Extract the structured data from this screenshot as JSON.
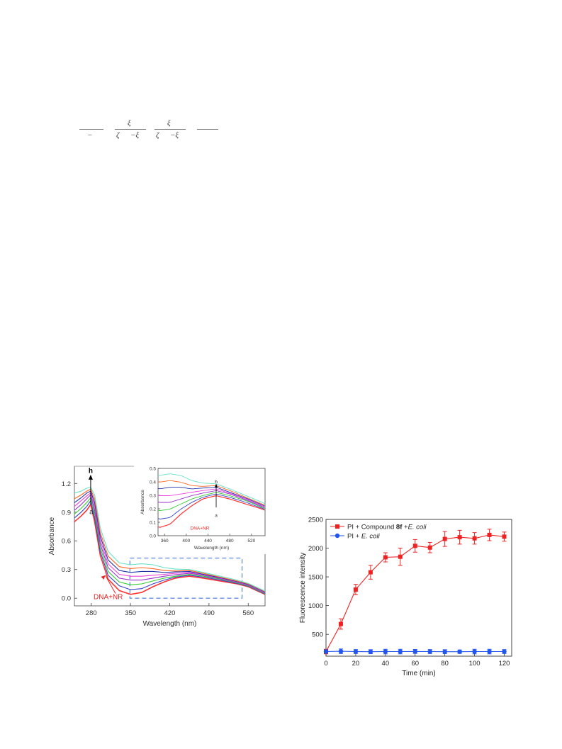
{
  "equation": {
    "parts": [
      "ξ",
      "ξ",
      "ζ",
      "−ξ",
      "ζ",
      "−ξ",
      "−"
    ]
  },
  "chart_data": [
    {
      "type": "line",
      "title": "",
      "xlabel": "Wavelength (nm)",
      "ylabel": "Absorbance",
      "xlim": [
        250,
        590
      ],
      "ylim": [
        -0.08,
        1.38
      ],
      "x_ticks": [
        280,
        350,
        420,
        490,
        560
      ],
      "y_ticks": [
        0.0,
        0.3,
        0.6,
        0.9,
        1.2
      ],
      "x": [
        250,
        262,
        272,
        279,
        286,
        296,
        310,
        330,
        350,
        370,
        390,
        410,
        430,
        455,
        480,
        510,
        540,
        560,
        575,
        590
      ],
      "series": [
        {
          "color": "#ff3333",
          "values": [
            0.8,
            0.86,
            0.92,
            0.98,
            0.8,
            0.45,
            0.2,
            0.08,
            0.04,
            0.06,
            0.12,
            0.17,
            0.21,
            0.23,
            0.21,
            0.18,
            0.15,
            0.12,
            0.08,
            0.04
          ]
        },
        {
          "color": "#3344cc",
          "values": [
            0.84,
            0.9,
            0.96,
            1.02,
            0.84,
            0.49,
            0.24,
            0.13,
            0.09,
            0.1,
            0.15,
            0.19,
            0.22,
            0.24,
            0.22,
            0.19,
            0.155,
            0.125,
            0.085,
            0.045
          ]
        },
        {
          "color": "#33cc33",
          "values": [
            0.88,
            0.94,
            1.0,
            1.05,
            0.88,
            0.53,
            0.28,
            0.17,
            0.14,
            0.15,
            0.18,
            0.21,
            0.23,
            0.25,
            0.23,
            0.2,
            0.16,
            0.13,
            0.09,
            0.05
          ]
        },
        {
          "color": "#9933cc",
          "values": [
            0.92,
            0.98,
            1.04,
            1.08,
            0.92,
            0.57,
            0.32,
            0.21,
            0.19,
            0.19,
            0.21,
            0.23,
            0.245,
            0.26,
            0.24,
            0.205,
            0.165,
            0.135,
            0.095,
            0.055
          ]
        },
        {
          "color": "#ee44dd",
          "values": [
            0.96,
            1.02,
            1.07,
            1.1,
            0.96,
            0.61,
            0.36,
            0.25,
            0.23,
            0.23,
            0.24,
            0.25,
            0.26,
            0.27,
            0.245,
            0.21,
            0.17,
            0.14,
            0.1,
            0.06
          ]
        },
        {
          "color": "#2233aa",
          "values": [
            1.0,
            1.05,
            1.1,
            1.12,
            1.0,
            0.65,
            0.4,
            0.29,
            0.27,
            0.28,
            0.28,
            0.27,
            0.275,
            0.28,
            0.25,
            0.215,
            0.175,
            0.145,
            0.105,
            0.065
          ]
        },
        {
          "color": "#ff6622",
          "values": [
            1.04,
            1.08,
            1.12,
            1.14,
            1.04,
            0.69,
            0.44,
            0.33,
            0.31,
            0.32,
            0.31,
            0.29,
            0.285,
            0.29,
            0.26,
            0.22,
            0.18,
            0.15,
            0.11,
            0.07
          ]
        },
        {
          "color": "#66e0c8",
          "values": [
            1.1,
            1.12,
            1.15,
            1.16,
            1.08,
            0.74,
            0.49,
            0.37,
            0.35,
            0.36,
            0.35,
            0.32,
            0.305,
            0.3,
            0.27,
            0.23,
            0.19,
            0.155,
            0.115,
            0.075
          ]
        }
      ],
      "annotations": {
        "top_label": "h",
        "bottom_label": "a",
        "curve_label": "DNA+NR"
      },
      "inset": {
        "xlabel": "Wavelength (nm)",
        "ylabel": "Absorbance",
        "xlim": [
          348,
          545
        ],
        "ylim": [
          0.0,
          0.5
        ],
        "x_ticks": [
          360,
          400,
          440,
          480,
          520
        ],
        "y_ticks": [
          0.0,
          0.1,
          0.2,
          0.3,
          0.4,
          0.5
        ],
        "annotations": {
          "top_label": "h",
          "bottom_label": "a",
          "curve_label": "DNA+NR"
        }
      }
    },
    {
      "type": "line",
      "title": "",
      "xlabel": "Time (min)",
      "ylabel": "Fluorescence intensity",
      "xlim": [
        0,
        125
      ],
      "ylim": [
        120,
        2500
      ],
      "x_ticks": [
        0,
        20,
        40,
        60,
        80,
        100,
        120
      ],
      "y_ticks": [
        500,
        1000,
        1500,
        2000,
        2500
      ],
      "x": [
        0,
        10,
        20,
        30,
        40,
        50,
        60,
        70,
        80,
        90,
        100,
        110,
        120
      ],
      "series": [
        {
          "name_parts": [
            "PI + Compound ",
            "8f",
            " +",
            "E. coli"
          ],
          "color": "#ee2222",
          "marker": "square",
          "values": [
            200,
            680,
            1280,
            1580,
            1840,
            1850,
            2040,
            2010,
            2160,
            2190,
            2170,
            2230,
            2200
          ],
          "errors": [
            40,
            90,
            90,
            120,
            80,
            150,
            110,
            90,
            130,
            120,
            100,
            100,
            80
          ]
        },
        {
          "name_parts": [
            "PI + ",
            "E. coli"
          ],
          "color": "#2255ee",
          "marker": "circle",
          "values": [
            200,
            205,
            200,
            198,
            200,
            200,
            202,
            200,
            198,
            198,
            200,
            200,
            200
          ],
          "errors": [
            30,
            40,
            35,
            35,
            40,
            40,
            35,
            35,
            35,
            30,
            40,
            40,
            35
          ]
        }
      ]
    }
  ]
}
